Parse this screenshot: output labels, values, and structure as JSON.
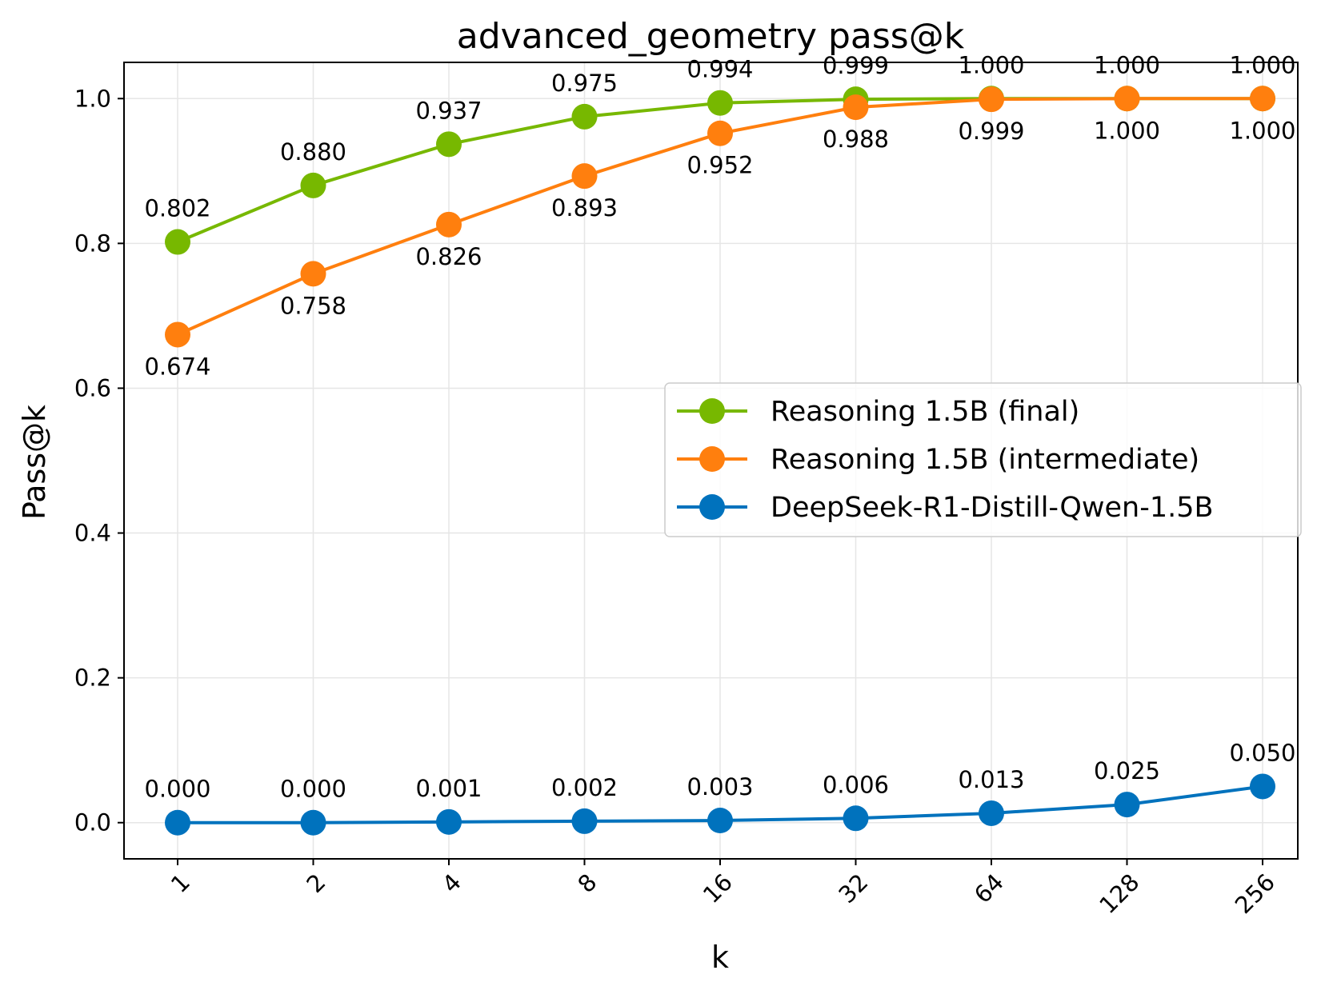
{
  "chart_data": {
    "type": "line",
    "title": "advanced_geometry pass@k",
    "xlabel": "k",
    "ylabel": "Pass@k",
    "x": [
      "1",
      "2",
      "4",
      "8",
      "16",
      "32",
      "64",
      "128",
      "256"
    ],
    "ylim": [
      -0.05,
      1.05
    ],
    "yticks": [
      "0.0",
      "0.2",
      "0.4",
      "0.6",
      "0.8",
      "1.0"
    ],
    "yticks_values": [
      0.0,
      0.2,
      0.4,
      0.6,
      0.8,
      1.0
    ],
    "grid": true,
    "legend_position": "center-right",
    "series": [
      {
        "name": "Reasoning 1.5B (final)",
        "color": "#77b800",
        "values": [
          0.802,
          0.88,
          0.937,
          0.975,
          0.994,
          0.999,
          1.0,
          1.0,
          1.0
        ],
        "labels": [
          "0.802",
          "0.880",
          "0.937",
          "0.975",
          "0.994",
          "0.999",
          "1.000",
          "1.000",
          "1.000"
        ],
        "label_side": "above"
      },
      {
        "name": "Reasoning 1.5B (intermediate)",
        "color": "#ff7f0e",
        "values": [
          0.674,
          0.758,
          0.826,
          0.893,
          0.952,
          0.988,
          0.999,
          1.0,
          1.0
        ],
        "labels": [
          "0.674",
          "0.758",
          "0.826",
          "0.893",
          "0.952",
          "0.988",
          "0.999",
          "1.000",
          "1.000"
        ],
        "label_side": "below"
      },
      {
        "name": "DeepSeek-R1-Distill-Qwen-1.5B",
        "color": "#0072bd",
        "values": [
          0.0,
          0.0,
          0.001,
          0.002,
          0.003,
          0.006,
          0.013,
          0.025,
          0.05
        ],
        "labels": [
          "0.000",
          "0.000",
          "0.001",
          "0.002",
          "0.003",
          "0.006",
          "0.013",
          "0.025",
          "0.050"
        ],
        "label_side": "above"
      }
    ]
  }
}
